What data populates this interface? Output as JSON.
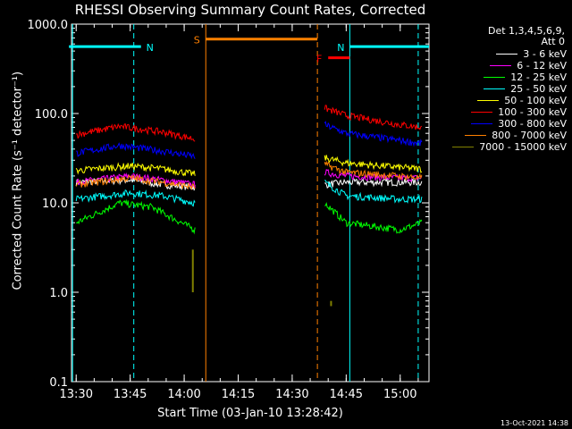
{
  "chart_data": {
    "type": "line",
    "title": "RHESSI Observing Summary Count Rates, Corrected",
    "xlabel": "Start Time (03-Jan-10 13:28:42)",
    "ylabel": "Corrected Count Rate (s⁻¹ detector⁻¹)",
    "y_scale": "log",
    "ylim": [
      0.1,
      1000
    ],
    "y_ticks": [
      "1000.0",
      "100.0",
      "10.0",
      "1.0",
      "0.1"
    ],
    "x_range_minutes": [
      "13:28",
      "15:08"
    ],
    "x_ticks": [
      "13:30",
      "13:45",
      "14:00",
      "14:15",
      "14:30",
      "14:45",
      "15:00"
    ],
    "legend_header": [
      "Det 1,3,4,5,6,9,",
      "Att 0"
    ],
    "legend_placement": "right",
    "series": [
      {
        "name": "3 - 6 keV",
        "color": "#ffffff",
        "seg1": [
          [
            13.5,
            17
          ],
          [
            13.75,
            18
          ],
          [
            13.9,
            16
          ],
          [
            14.05,
            15
          ]
        ],
        "seg2": [
          [
            14.65,
            16
          ],
          [
            14.75,
            17
          ],
          [
            15.0,
            17
          ],
          [
            15.1,
            17
          ]
        ]
      },
      {
        "name": "6 - 12 keV",
        "color": "#ff00ff",
        "seg1": [
          [
            13.5,
            17
          ],
          [
            13.75,
            20
          ],
          [
            13.9,
            18
          ],
          [
            14.05,
            16
          ]
        ],
        "seg2": [
          [
            14.65,
            22
          ],
          [
            14.75,
            20
          ],
          [
            15.0,
            19
          ],
          [
            15.1,
            19
          ]
        ]
      },
      {
        "name": "12 - 25 keV",
        "color": "#00ff00",
        "seg1": [
          [
            13.5,
            6
          ],
          [
            13.7,
            10
          ],
          [
            13.85,
            9
          ],
          [
            14.05,
            5
          ]
        ],
        "seg2": [
          [
            14.65,
            10
          ],
          [
            14.75,
            6
          ],
          [
            15.0,
            5
          ],
          [
            15.1,
            6
          ]
        ]
      },
      {
        "name": "25 - 50 keV",
        "color": "#00ffff",
        "seg1": [
          [
            13.5,
            11
          ],
          [
            13.75,
            13
          ],
          [
            13.9,
            12
          ],
          [
            14.05,
            10
          ]
        ],
        "seg2": [
          [
            14.65,
            17
          ],
          [
            14.75,
            12
          ],
          [
            15.0,
            11
          ],
          [
            15.1,
            11
          ]
        ]
      },
      {
        "name": "50 - 100 keV",
        "color": "#ffff00",
        "seg1": [
          [
            13.5,
            23
          ],
          [
            13.75,
            26
          ],
          [
            13.9,
            24
          ],
          [
            14.05,
            21
          ]
        ],
        "seg2": [
          [
            14.65,
            32
          ],
          [
            14.75,
            28
          ],
          [
            15.0,
            25
          ],
          [
            15.1,
            24
          ]
        ]
      },
      {
        "name": "100 - 300 keV",
        "color": "#ff0000",
        "seg1": [
          [
            13.5,
            58
          ],
          [
            13.7,
            72
          ],
          [
            13.9,
            62
          ],
          [
            14.05,
            52
          ]
        ],
        "seg2": [
          [
            14.65,
            115
          ],
          [
            14.75,
            95
          ],
          [
            15.0,
            75
          ],
          [
            15.1,
            70
          ]
        ]
      },
      {
        "name": "300 - 800 keV",
        "color": "#0000ff",
        "seg1": [
          [
            13.5,
            36
          ],
          [
            13.7,
            44
          ],
          [
            13.9,
            38
          ],
          [
            14.05,
            33
          ]
        ],
        "seg2": [
          [
            14.65,
            75
          ],
          [
            14.75,
            60
          ],
          [
            15.0,
            50
          ],
          [
            15.1,
            46
          ]
        ]
      },
      {
        "name": "800 - 7000 keV",
        "color": "#ff8000",
        "seg1": [
          [
            13.5,
            16
          ],
          [
            13.75,
            19
          ],
          [
            13.9,
            17
          ],
          [
            14.05,
            15
          ]
        ],
        "seg2": [
          [
            14.65,
            27
          ],
          [
            14.75,
            22
          ],
          [
            15.0,
            20
          ],
          [
            15.1,
            19
          ]
        ]
      },
      {
        "name": "7000 - 15000 keV",
        "color": "#808000",
        "seg1": [
          [
            14.04,
            1.0
          ],
          [
            14.04,
            3.0
          ]
        ],
        "seg2": [
          [
            14.68,
            0.7
          ],
          [
            14.68,
            0.8
          ]
        ]
      }
    ],
    "flag_bars": [
      {
        "label": "N",
        "color": "#00ffff",
        "from": "13:28",
        "to": "13:48",
        "y": 560
      },
      {
        "label": "N",
        "color": "#00ffff",
        "from": "14:46",
        "to": "15:08",
        "y": 560
      },
      {
        "label": "S",
        "color": "#ff8000",
        "from": "14:06",
        "to": "14:37",
        "y": 680
      },
      {
        "label": "F",
        "color": "#ff0000",
        "from": "14:40",
        "to": "14:46",
        "y": 420
      }
    ],
    "vlines": [
      {
        "t": "13:29",
        "color": "#00ffff",
        "dash": false
      },
      {
        "t": "13:46",
        "color": "#00ffff",
        "dash": true
      },
      {
        "t": "14:06",
        "color": "#ff8000",
        "dash": false
      },
      {
        "t": "14:37",
        "color": "#ff8000",
        "dash": true
      },
      {
        "t": "14:46",
        "color": "#00ffff",
        "dash": false
      },
      {
        "t": "15:05",
        "color": "#00ffff",
        "dash": true
      }
    ]
  },
  "footer_stamp": "13-Oct-2021 14:38"
}
